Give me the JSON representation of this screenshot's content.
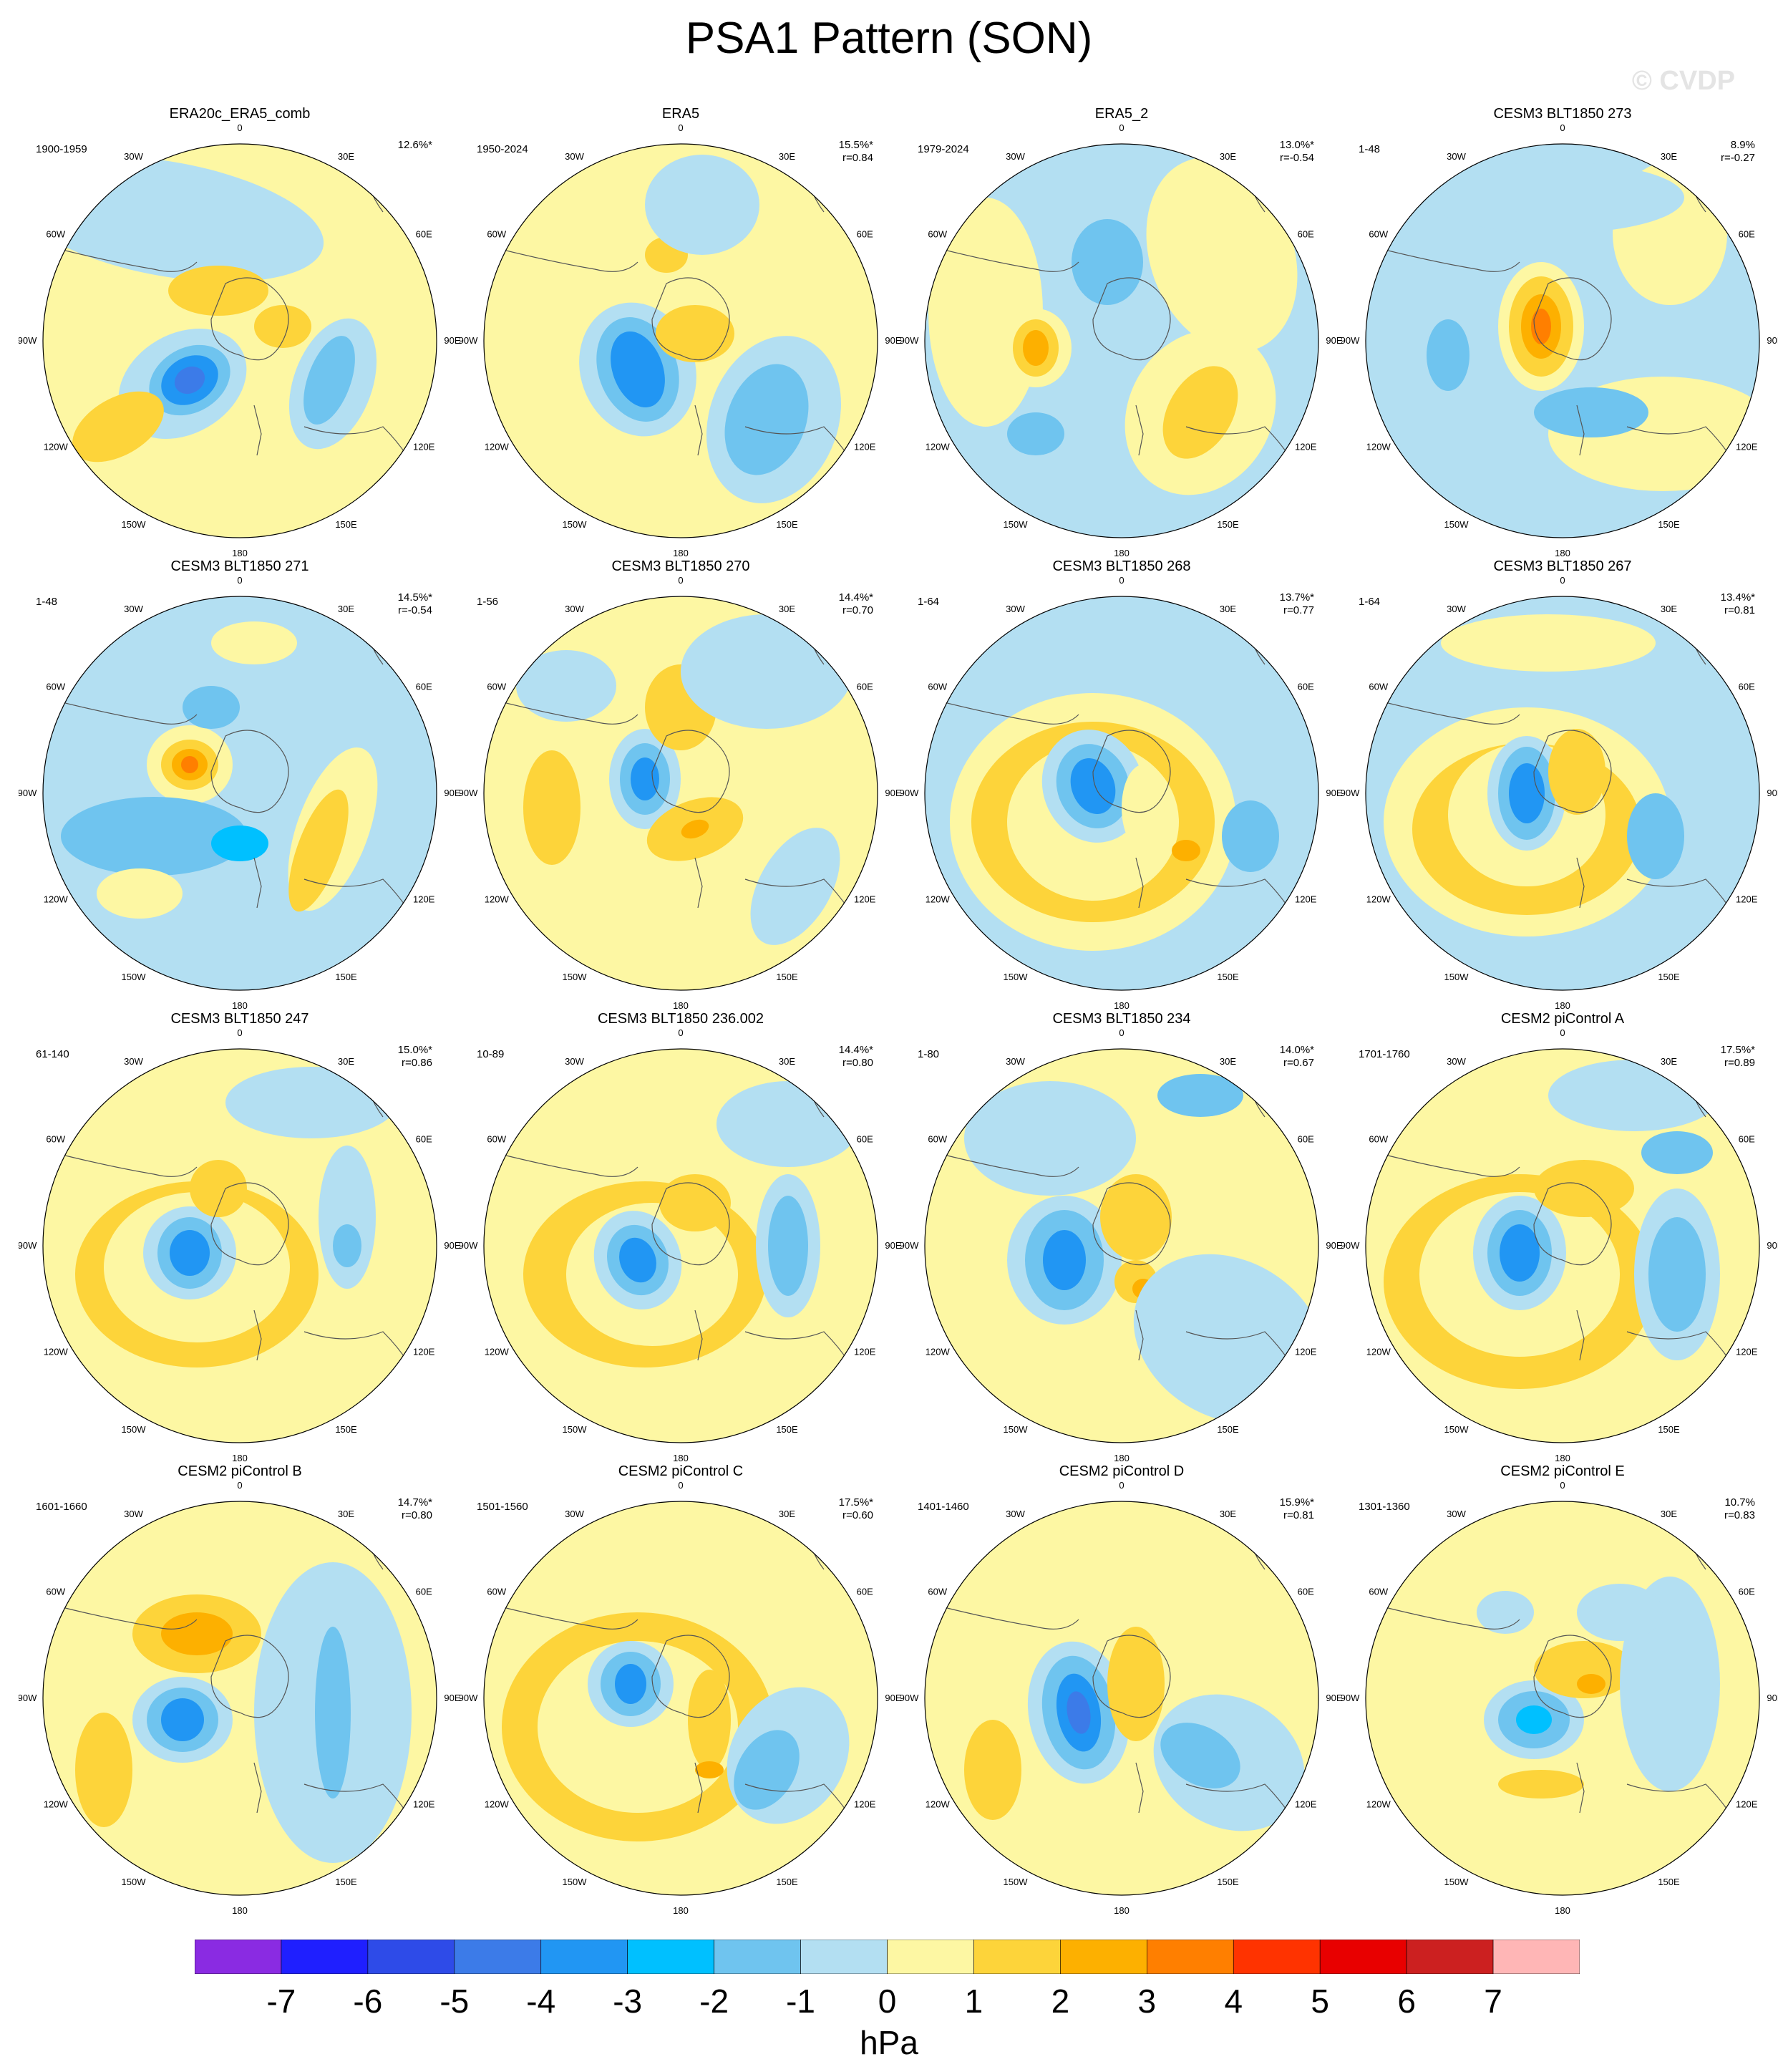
{
  "title": "PSA1 Pattern (SON)",
  "watermark": "© CVDP",
  "units": "hPa",
  "colorbar": {
    "labels": [
      "-7",
      "-6",
      "-5",
      "-4",
      "-3",
      "-2",
      "-1",
      "0",
      "1",
      "2",
      "3",
      "4",
      "5",
      "6",
      "7"
    ],
    "colors": [
      "#8a2be2",
      "#1f1fff",
      "#2e4be8",
      "#3c7be8",
      "#2196f3",
      "#00c0ff",
      "#6fc4ef",
      "#b3dff2",
      "#fdf7a3",
      "#fdd43a",
      "#fdb000",
      "#ff7f00",
      "#ff3300",
      "#e80000",
      "#cc2020",
      "#ffb6b6"
    ]
  },
  "panels": [
    {
      "title": "ERA20c_ERA5_comb",
      "years": "1900-1959",
      "pct": "12.6%*",
      "corr": ""
    },
    {
      "title": "ERA5",
      "years": "1950-2024",
      "pct": "15.5%*",
      "corr": "r=0.84"
    },
    {
      "title": "ERA5_2",
      "years": "1979-2024",
      "pct": "13.0%*",
      "corr": "r=-0.54"
    },
    {
      "title": "CESM3 BLT1850 273",
      "years": "1-48",
      "pct": "8.9%",
      "corr": "r=-0.27"
    },
    {
      "title": "CESM3 BLT1850 271",
      "years": "1-48",
      "pct": "14.5%*",
      "corr": "r=-0.54"
    },
    {
      "title": "CESM3 BLT1850 270",
      "years": "1-56",
      "pct": "14.4%*",
      "corr": "r=0.70"
    },
    {
      "title": "CESM3 BLT1850 268",
      "years": "1-64",
      "pct": "13.7%*",
      "corr": "r=0.77"
    },
    {
      "title": "CESM3 BLT1850 267",
      "years": "1-64",
      "pct": "13.4%*",
      "corr": "r=0.81"
    },
    {
      "title": "CESM3 BLT1850 247",
      "years": "61-140",
      "pct": "15.0%*",
      "corr": "r=0.86"
    },
    {
      "title": "CESM3 BLT1850 236.002",
      "years": "10-89",
      "pct": "14.4%*",
      "corr": "r=0.80"
    },
    {
      "title": "CESM3 BLT1850 234",
      "years": "1-80",
      "pct": "14.0%*",
      "corr": "r=0.67"
    },
    {
      "title": "CESM2 piControl A",
      "years": "1701-1760",
      "pct": "17.5%*",
      "corr": "r=0.89"
    },
    {
      "title": "CESM2 piControl B",
      "years": "1601-1660",
      "pct": "14.7%*",
      "corr": "r=0.80"
    },
    {
      "title": "CESM2 piControl C",
      "years": "1501-1560",
      "pct": "17.5%*",
      "corr": "r=0.60"
    },
    {
      "title": "CESM2 piControl D",
      "years": "1401-1460",
      "pct": "15.9%*",
      "corr": "r=0.81"
    },
    {
      "title": "CESM2 piControl E",
      "years": "1301-1360",
      "pct": "10.7%",
      "corr": "r=0.83"
    }
  ],
  "lon_labels": [
    "0",
    "30E",
    "60E",
    "90E",
    "120E",
    "150E",
    "180",
    "150W",
    "120W",
    "90W",
    "60W",
    "30W"
  ]
}
